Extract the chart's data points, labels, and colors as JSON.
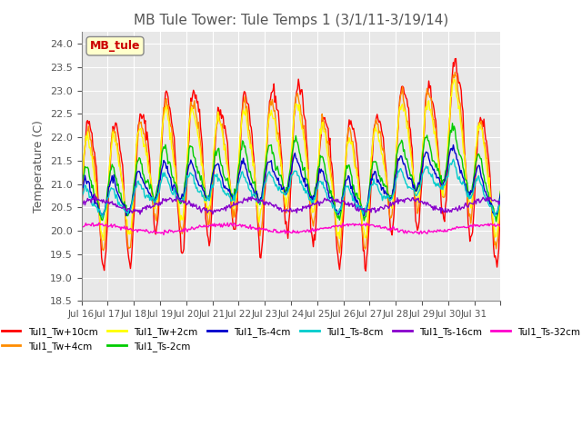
{
  "title": "MB Tule Tower: Tule Temps 1 (3/1/11-3/19/14)",
  "ylabel": "Temperature (C)",
  "ylim": [
    18.5,
    24.25
  ],
  "yticks": [
    18.5,
    19.0,
    19.5,
    20.0,
    20.5,
    21.0,
    21.5,
    22.0,
    22.5,
    23.0,
    23.5,
    24.0
  ],
  "xlim": [
    0,
    480
  ],
  "xtick_labels": [
    "Jul 16",
    "Jul 17",
    "Jul 18",
    "Jul 19",
    "Jul 20",
    "Jul 21",
    "Jul 22",
    "Jul 23",
    "Jul 24",
    "Jul 25",
    "Jul 26",
    "Jul 27",
    "Jul 28",
    "Jul 29",
    "Jul 30",
    "Jul 31",
    ""
  ],
  "legend_label": "MB_tule",
  "series_colors": {
    "Tul1_Tw+10cm": "#ff0000",
    "Tul1_Tw+4cm": "#ff8c00",
    "Tul1_Tw+2cm": "#ffff00",
    "Tul1_Ts-2cm": "#00cc00",
    "Tul1_Ts-4cm": "#0000cc",
    "Tul1_Ts-8cm": "#00cccc",
    "Tul1_Ts-16cm": "#8800cc",
    "Tul1_Ts-32cm": "#ff00cc"
  },
  "background_color": "#ffffff",
  "plot_bg_color": "#e8e8e8",
  "grid_color": "#ffffff",
  "title_color": "#555555"
}
